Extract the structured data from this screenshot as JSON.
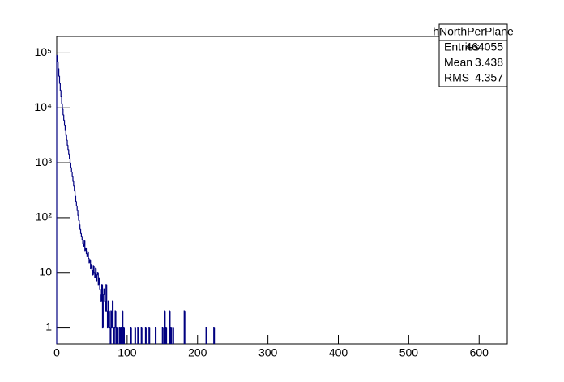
{
  "chart_data": {
    "type": "histogram",
    "color": "#000080",
    "log_y": true,
    "xlim": [
      0,
      640
    ],
    "ylim": [
      0.5,
      200000
    ],
    "xticks": [
      0,
      100,
      200,
      300,
      400,
      500,
      600
    ],
    "yticks": [
      1,
      10,
      {
        "value": 100,
        "label": "10²"
      },
      {
        "value": 1000,
        "label": "10³"
      },
      {
        "value": 10000,
        "label": "10⁴"
      },
      {
        "value": 100000,
        "label": "10⁵"
      }
    ],
    "bins": [
      0,
      1,
      2,
      3,
      4,
      5,
      6,
      7,
      8,
      9,
      10,
      11,
      12,
      13,
      14,
      15,
      16,
      17,
      18,
      19,
      20,
      21,
      22,
      23,
      24,
      25,
      26,
      27,
      28,
      29,
      30,
      31,
      32,
      33,
      34,
      35,
      36,
      37,
      38,
      39,
      40,
      41,
      42,
      43,
      44,
      45,
      46,
      47,
      48,
      49,
      50,
      51,
      52,
      53,
      54,
      55,
      56,
      57,
      58,
      59,
      60,
      61,
      62,
      63,
      64,
      65,
      66,
      67,
      68,
      69,
      70,
      71,
      72,
      73,
      74,
      75,
      76,
      77,
      78,
      79,
      80,
      81,
      82,
      83,
      84,
      85,
      86,
      87,
      88,
      89,
      90,
      91,
      92,
      93,
      94,
      95,
      96,
      97,
      98,
      99,
      100,
      101,
      102,
      103,
      104,
      105,
      106,
      107,
      108,
      109,
      110,
      111,
      112,
      113,
      114,
      115,
      116,
      117,
      118,
      119,
      120,
      121,
      122,
      123,
      124,
      125,
      126,
      127,
      128,
      129,
      130,
      131,
      132,
      133,
      134,
      135,
      136,
      137,
      138,
      139,
      140,
      141,
      142,
      143,
      144,
      145,
      146,
      147,
      148,
      149,
      150,
      151,
      152,
      153,
      154,
      155,
      156,
      157,
      158,
      159,
      160,
      161,
      162,
      163,
      164,
      165,
      166,
      167,
      168,
      169,
      170,
      171,
      172,
      173,
      174,
      175,
      176,
      177,
      178,
      179,
      180,
      181,
      182,
      183,
      184,
      185,
      186,
      187,
      188,
      189,
      190,
      191,
      192,
      193,
      194,
      195,
      196,
      197,
      198,
      199,
      200,
      201,
      202,
      203,
      204,
      205,
      206,
      207,
      208,
      209,
      210,
      211,
      212,
      213,
      214,
      215,
      216,
      217,
      218,
      219,
      220,
      221,
      222,
      223,
      224,
      225,
      226,
      227,
      228,
      229,
      230
    ],
    "values": [
      90000,
      70000,
      52000,
      38000,
      28000,
      21000,
      16000,
      12000,
      9500,
      7500,
      6000,
      4800,
      3900,
      3200,
      2600,
      2100,
      1750,
      1450,
      1200,
      1000,
      820,
      680,
      560,
      460,
      380,
      310,
      250,
      200,
      165,
      135,
      110,
      90,
      75,
      62,
      52,
      45,
      40,
      34,
      30,
      38,
      25,
      28,
      22,
      20,
      24,
      18,
      15,
      17,
      12,
      14,
      11,
      9,
      13,
      10,
      8,
      12,
      7,
      9,
      10,
      6,
      8,
      5,
      4,
      3,
      6,
      1,
      4,
      5,
      3,
      2,
      6,
      2,
      1,
      3,
      2,
      1,
      0,
      2,
      1,
      3,
      1,
      0,
      1,
      2,
      0,
      1,
      1,
      0,
      0,
      1,
      0,
      1,
      0,
      2,
      0,
      1,
      0,
      0,
      0,
      0,
      0,
      0,
      0,
      0,
      0,
      1,
      0,
      0,
      0,
      0,
      0,
      1,
      0,
      0,
      0,
      1,
      0,
      0,
      0,
      0,
      1,
      0,
      0,
      0,
      0,
      0,
      1,
      0,
      0,
      0,
      0,
      1,
      0,
      0,
      0,
      0,
      0,
      0,
      0,
      0,
      1,
      0,
      0,
      0,
      0,
      0,
      0,
      0,
      0,
      0,
      1,
      0,
      0,
      2,
      0,
      1,
      0,
      0,
      0,
      0,
      2,
      0,
      1,
      0,
      0,
      1,
      0,
      0,
      0,
      0,
      0,
      0,
      0,
      0,
      0,
      0,
      0,
      0,
      0,
      0,
      0,
      2,
      0,
      0,
      0,
      0,
      0,
      0,
      0,
      0,
      0,
      0,
      0,
      0,
      0,
      0,
      0,
      0,
      0,
      0,
      0,
      0,
      0,
      0,
      0,
      0,
      0,
      0,
      0,
      0,
      0,
      0,
      1,
      0,
      0,
      0,
      0,
      0,
      0,
      0,
      0,
      0,
      0,
      1,
      0,
      0,
      0,
      0,
      0,
      0,
      0
    ],
    "stats": {
      "title": "hNorthPerPlane",
      "rows": [
        [
          "Entries",
          464055
        ],
        [
          "Mean",
          3.438
        ],
        [
          "RMS",
          4.357
        ]
      ]
    }
  }
}
